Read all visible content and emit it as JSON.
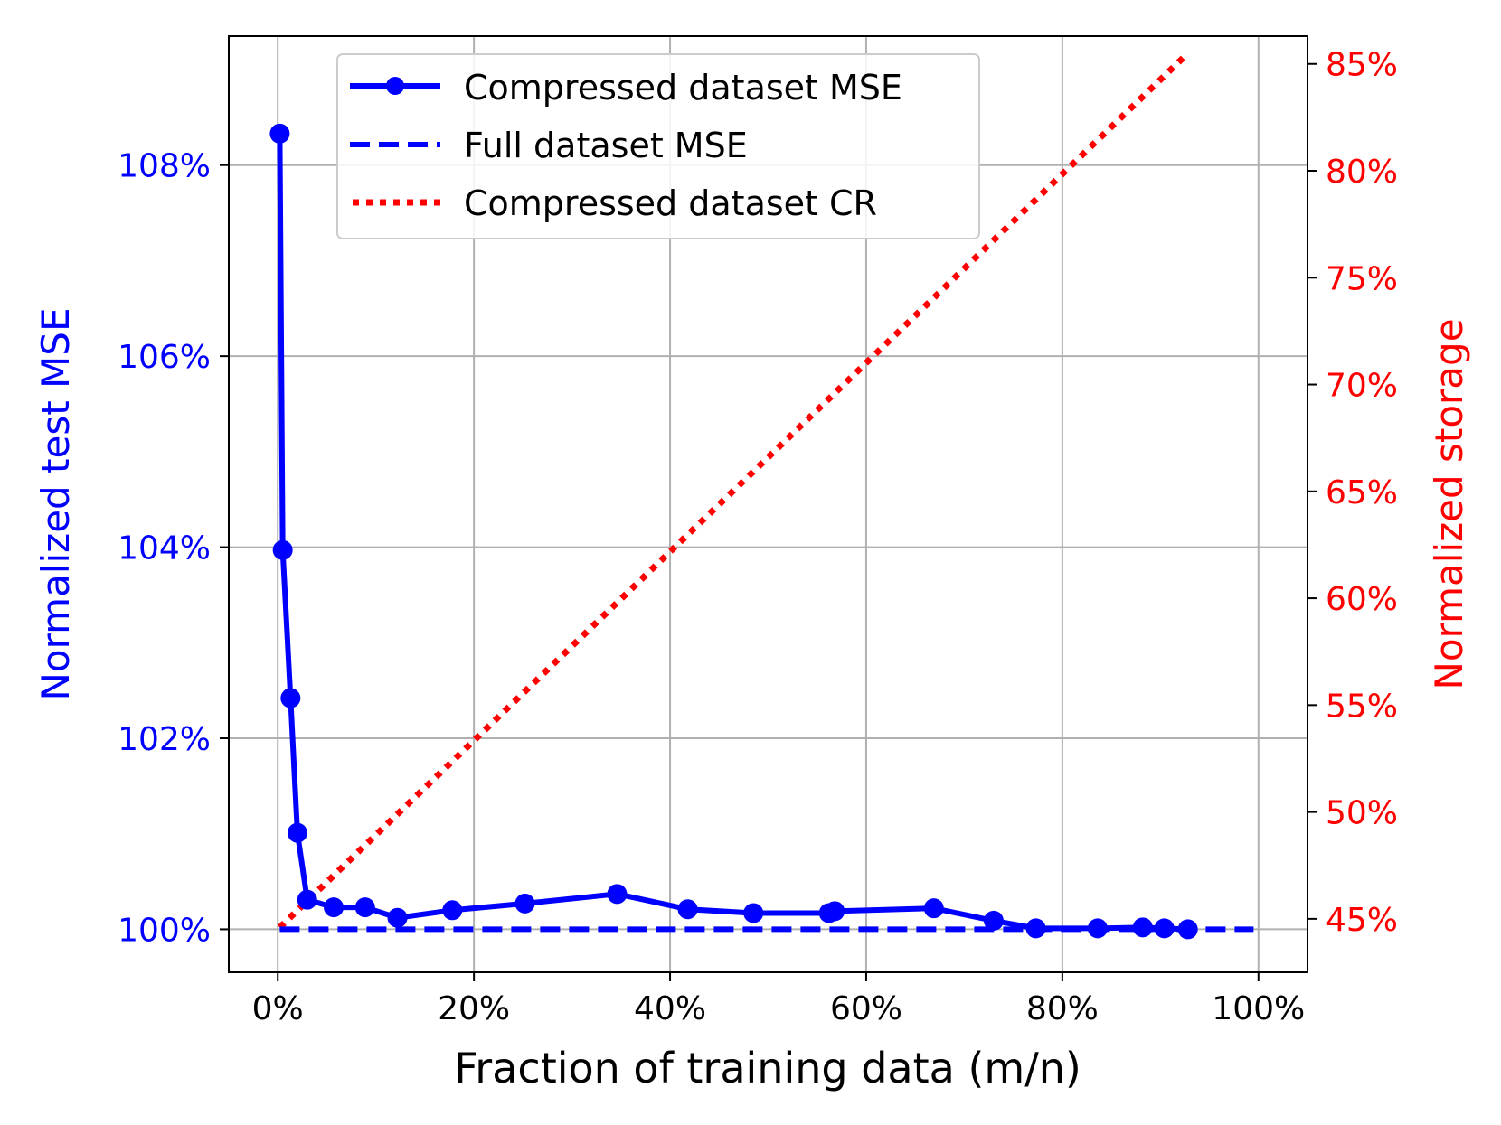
{
  "chart_data": {
    "type": "line",
    "xlabel": "Fraction of training data (m/n)",
    "ylabel_left": "Normalized test MSE",
    "ylabel_right": "Normalized storage",
    "xlim": [
      -5,
      105
    ],
    "ylim_left": [
      99.55,
      109.35
    ],
    "ylim_right": [
      42.5,
      86.3
    ],
    "x_ticks": [
      0,
      20,
      40,
      60,
      80,
      100
    ],
    "x_tick_labels": [
      "0%",
      "20%",
      "40%",
      "60%",
      "80%",
      "100%"
    ],
    "y_left_ticks": [
      100,
      102,
      104,
      106,
      108
    ],
    "y_left_tick_labels": [
      "100%",
      "102%",
      "104%",
      "106%",
      "108%"
    ],
    "y_right_ticks": [
      45,
      50,
      55,
      60,
      65,
      70,
      75,
      80,
      85
    ],
    "y_right_tick_labels": [
      "45%",
      "50%",
      "55%",
      "60%",
      "65%",
      "70%",
      "75%",
      "80%",
      "85%"
    ],
    "grid": true,
    "legend_position": "top-left",
    "colors": {
      "mse": "#0000ff",
      "full": "#0000ff",
      "cr": "#ff0000",
      "grid": "#b0b0b0"
    },
    "series": [
      {
        "name": "Compressed dataset MSE",
        "axis": "left",
        "style": "solid-markers",
        "x": [
          0.2,
          0.5,
          1.3,
          2.0,
          3.0,
          5.7,
          8.9,
          12.2,
          17.8,
          25.2,
          34.6,
          41.8,
          48.5,
          56.2,
          56.8,
          66.9,
          73.0,
          77.3,
          83.6,
          88.2,
          90.4,
          92.8
        ],
        "y": [
          108.33,
          103.97,
          102.42,
          101.01,
          100.31,
          100.23,
          100.23,
          100.12,
          100.2,
          100.27,
          100.37,
          100.21,
          100.17,
          100.17,
          100.19,
          100.22,
          100.09,
          100.01,
          100.01,
          100.02,
          100.01,
          100.0
        ]
      },
      {
        "name": "Full dataset MSE",
        "axis": "left",
        "style": "dashed",
        "x": [
          0.2,
          99.5
        ],
        "y": [
          100.0,
          100.0
        ]
      },
      {
        "name": "Compressed dataset CR",
        "axis": "right",
        "style": "dotted",
        "x": [
          0.2,
          92.8
        ],
        "y": [
          44.6,
          85.5
        ]
      }
    ]
  }
}
